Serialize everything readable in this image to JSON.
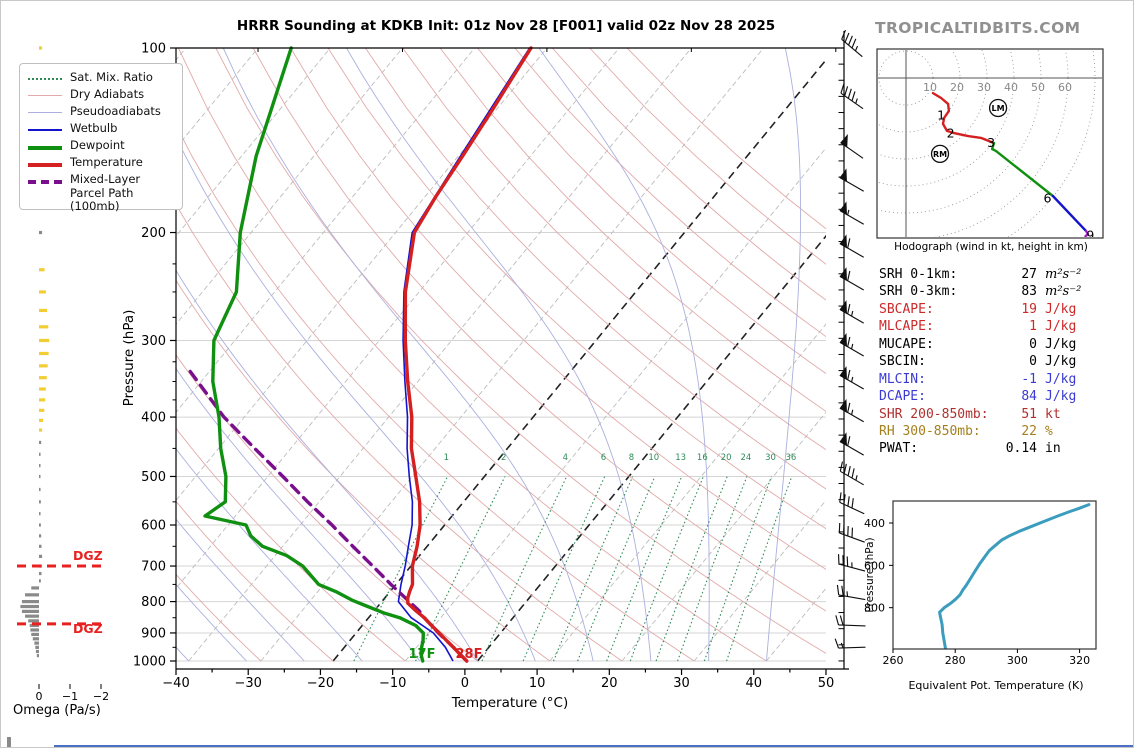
{
  "header": {
    "title": "HRRR Sounding at KDKB Init: 01z Nov 28 [F001] valid 02z Nov 28 2025",
    "watermark": "TROPICALTIDBITS.COM"
  },
  "legend": {
    "items": [
      {
        "key": "sat_mix_ratio",
        "label": "Sat. Mix. Ratio"
      },
      {
        "key": "dry_adiabats",
        "label": "Dry Adiabats"
      },
      {
        "key": "pseudoadiabats",
        "label": "Pseudoadiabats"
      },
      {
        "key": "wetbulb",
        "label": "Wetbulb"
      },
      {
        "key": "dewpoint",
        "label": "Dewpoint"
      },
      {
        "key": "temperature",
        "label": "Temperature"
      },
      {
        "key": "parcel",
        "label": "Mixed-Layer",
        "label2": "Parcel Path (100mb)"
      }
    ]
  },
  "axes": {
    "pressure_label": "Pressure (hPa)",
    "temp_label": "Temperature (°C)",
    "omega_label": "Omega (Pa/s)",
    "hodo_caption": "Hodograph (wind in kt, height in km)",
    "thetae_xlabel": "Equivalent Pot. Temperature (K)",
    "thetae_ylabel": "Pressure (hPa)"
  },
  "stats": {
    "rows": [
      {
        "label": "SRH 0-1km:",
        "value": "27",
        "unit": "m²s⁻²",
        "color": "#000000",
        "unit_italic": true
      },
      {
        "label": "SRH 0-3km:",
        "value": "83",
        "unit": "m²s⁻²",
        "color": "#000000",
        "unit_italic": true
      },
      {
        "label": "SBCAPE:",
        "value": "19",
        "unit": "J/kg",
        "color": "#cc2929",
        "unit_italic": false
      },
      {
        "label": "MLCAPE:",
        "value": "1",
        "unit": "J/kg",
        "color": "#cc2929",
        "unit_italic": false
      },
      {
        "label": "MUCAPE:",
        "value": "0",
        "unit": "J/kg",
        "color": "#000000",
        "unit_italic": false
      },
      {
        "label": "SBCIN:",
        "value": "0",
        "unit": "J/kg",
        "color": "#000000",
        "unit_italic": false
      },
      {
        "label": "MLCIN:",
        "value": "-1",
        "unit": "J/kg",
        "color": "#3b3bd1",
        "unit_italic": false
      },
      {
        "label": "DCAPE:",
        "value": "84",
        "unit": "J/kg",
        "color": "#3b3bd1",
        "unit_italic": false
      },
      {
        "label": "SHR 200-850mb:",
        "value": "51",
        "unit": "kt",
        "color": "#b03030",
        "unit_italic": false
      },
      {
        "label": "RH 300-850mb:",
        "value": "22",
        "unit": "%",
        "color": "#a5801f",
        "unit_italic": false
      },
      {
        "label": "PWAT:",
        "value": "0.14",
        "unit": "in",
        "color": "#000000",
        "unit_italic": false
      }
    ]
  },
  "chart_data": [
    {
      "type": "line",
      "name": "skewt",
      "title": "HRRR Sounding at KDKB Init: 01z Nov 28 [F001] valid 02z Nov 28 2025",
      "xlabel": "Temperature (°C)",
      "ylabel": "Pressure (hPa)",
      "xlim": [
        -40,
        50
      ],
      "ylim": [
        1000,
        100
      ],
      "x_ticks": [
        -40,
        -30,
        -20,
        -10,
        0,
        10,
        20,
        30,
        40,
        50
      ],
      "pressure_ticks": [
        100,
        200,
        300,
        400,
        500,
        600,
        700,
        800,
        900,
        1000
      ],
      "mixing_ratio_values": [
        1,
        2,
        4,
        6,
        8,
        10,
        13,
        16,
        20,
        24,
        30,
        36
      ],
      "surface_labels": [
        {
          "text": "17F",
          "x": 421,
          "y": 648,
          "color": "#109010"
        },
        {
          "text": "28F",
          "x": 468,
          "y": 648,
          "color": "#d42020"
        }
      ],
      "colors": {
        "temperature": "#d42020",
        "dewpoint": "#109010",
        "wetbulb": "#1414cc",
        "parcel": "#7a0f8e",
        "dry_adiabat": "#e2aaaa",
        "pseudoadiabat": "#abb0de",
        "mixing_ratio": "#2e8b57",
        "isotherm": "#bcbcbc",
        "isotherm_bold": "#222222"
      },
      "series": [
        {
          "name": "Temperature",
          "points": [
            [
              1000,
              -1.5
            ],
            [
              975,
              -3.2
            ],
            [
              950,
              -4.9
            ],
            [
              925,
              -6.7
            ],
            [
              900,
              -8.5
            ],
            [
              875,
              -10.4
            ],
            [
              850,
              -12.3
            ],
            [
              825,
              -14.5
            ],
            [
              805,
              -16.2
            ],
            [
              790,
              -16.8
            ],
            [
              770,
              -17.3
            ],
            [
              750,
              -17.7
            ],
            [
              700,
              -19.8
            ],
            [
              650,
              -21.4
            ],
            [
              600,
              -23.4
            ],
            [
              550,
              -26.1
            ],
            [
              500,
              -29.5
            ],
            [
              450,
              -33.3
            ],
            [
              400,
              -36.8
            ],
            [
              350,
              -41.4
            ],
            [
              300,
              -46.4
            ],
            [
              250,
              -51.9
            ],
            [
              200,
              -57.4
            ],
            [
              175,
              -58.5
            ],
            [
              150,
              -59.4
            ],
            [
              125,
              -60.6
            ],
            [
              100,
              -62.2
            ]
          ]
        },
        {
          "name": "Dewpoint",
          "points": [
            [
              1000,
              -7.6
            ],
            [
              975,
              -8.6
            ],
            [
              950,
              -9.3
            ],
            [
              925,
              -9.9
            ],
            [
              900,
              -10.7
            ],
            [
              875,
              -12.6
            ],
            [
              850,
              -15.7
            ],
            [
              835,
              -18.4
            ],
            [
              815,
              -21.4
            ],
            [
              797,
              -24.1
            ],
            [
              772,
              -27.3
            ],
            [
              750,
              -30.7
            ],
            [
              700,
              -35.0
            ],
            [
              673,
              -38.4
            ],
            [
              650,
              -42.8
            ],
            [
              625,
              -45.6
            ],
            [
              600,
              -47.5
            ],
            [
              580,
              -54.2
            ],
            [
              550,
              -53.0
            ],
            [
              500,
              -55.8
            ],
            [
              450,
              -59.7
            ],
            [
              400,
              -63.5
            ],
            [
              350,
              -68.4
            ],
            [
              300,
              -72.9
            ],
            [
              250,
              -75.3
            ],
            [
              200,
              -81.5
            ],
            [
              150,
              -88.0
            ],
            [
              100,
              -95.4
            ]
          ]
        },
        {
          "name": "Wetbulb",
          "points": [
            [
              1000,
              -3.4
            ],
            [
              950,
              -6.0
            ],
            [
              900,
              -9.3
            ],
            [
              850,
              -14.1
            ],
            [
              800,
              -17.7
            ],
            [
              750,
              -19.3
            ],
            [
              700,
              -20.8
            ],
            [
              650,
              -22.6
            ],
            [
              600,
              -24.5
            ],
            [
              550,
              -27.1
            ],
            [
              500,
              -30.4
            ],
            [
              450,
              -33.9
            ],
            [
              400,
              -37.4
            ],
            [
              350,
              -41.8
            ],
            [
              300,
              -46.7
            ],
            [
              250,
              -52.1
            ],
            [
              200,
              -57.7
            ],
            [
              150,
              -59.7
            ],
            [
              100,
              -62.4
            ]
          ]
        },
        {
          "name": "Mixed-Layer Parcel Path (100mb)",
          "points": [
            [
              1000,
              -1.5
            ],
            [
              950,
              -4.9
            ],
            [
              900,
              -8.6
            ],
            [
              850,
              -12.3
            ],
            [
              828,
              -13.8
            ],
            [
              750,
              -20.7
            ],
            [
              700,
              -25.3
            ],
            [
              650,
              -30.3
            ],
            [
              600,
              -35.6
            ],
            [
              550,
              -41.6
            ],
            [
              500,
              -47.9
            ],
            [
              450,
              -55.0
            ],
            [
              400,
              -62.8
            ],
            [
              335,
              -73.0
            ]
          ]
        }
      ],
      "wind_barbs": [
        [
          100,
          45,
          310
        ],
        [
          122,
          45,
          305
        ],
        [
          147,
          50,
          305
        ],
        [
          167,
          50,
          300
        ],
        [
          189,
          55,
          300
        ],
        [
          214,
          60,
          300
        ],
        [
          242,
          60,
          300
        ],
        [
          274,
          65,
          300
        ],
        [
          310,
          65,
          300
        ],
        [
          351,
          65,
          300
        ],
        [
          397,
          65,
          300
        ],
        [
          450,
          60,
          300
        ],
        [
          503,
          45,
          300
        ],
        [
          563,
          40,
          295
        ],
        [
          629,
          40,
          290
        ],
        [
          704,
          35,
          285
        ],
        [
          787,
          25,
          280
        ],
        [
          875,
          20,
          272
        ],
        [
          951,
          15,
          268
        ]
      ]
    },
    {
      "type": "line",
      "name": "hodograph",
      "caption": "Hodograph (wind in kt, height in km)",
      "ring_labels": [
        10,
        20,
        30,
        40,
        50,
        60
      ],
      "segments": [
        {
          "color": "#d42020",
          "points": [
            [
              10,
              -5.6
            ],
            [
              13,
              -7.4
            ],
            [
              15.6,
              -9.6
            ],
            [
              15.9,
              -12.2
            ],
            [
              14.1,
              -14.8
            ],
            [
              13.7,
              -17.0
            ],
            [
              15.2,
              -19.6
            ],
            [
              17.8,
              -20.4
            ],
            [
              23,
              -21.5
            ],
            [
              27.8,
              -22.2
            ],
            [
              32.6,
              -24.1
            ]
          ]
        },
        {
          "color": "#109010",
          "points": [
            [
              32.6,
              -24.1
            ],
            [
              31.9,
              -26.3
            ],
            [
              33.3,
              -27.0
            ],
            [
              54.4,
              -43.7
            ]
          ]
        },
        {
          "color": "#1414cc",
          "points": [
            [
              54.4,
              -43.7
            ],
            [
              66.7,
              -56.7
            ]
          ]
        },
        {
          "color": "#a020c0",
          "points": [
            [
              66.7,
              -56.7
            ],
            [
              67.4,
              -57.8
            ],
            [
              66.5,
              -58.6
            ]
          ]
        }
      ],
      "height_labels": [
        {
          "t": "1",
          "u": 13.0,
          "v": -13.9
        },
        {
          "t": "2",
          "u": 16.5,
          "v": -20.6
        },
        {
          "t": "3",
          "u": 31.5,
          "v": -24.0
        },
        {
          "t": "6",
          "u": 52.4,
          "v": -44.6
        },
        {
          "t": "9",
          "u": 68.3,
          "v": -58.3
        }
      ],
      "storm_motion_markers": [
        {
          "label": "RM",
          "u": 12.6,
          "v": -28.1
        },
        {
          "label": "LM",
          "u": 34.1,
          "v": -11.1
        }
      ]
    },
    {
      "type": "bar",
      "name": "omega",
      "xlabel": "Omega (Pa/s)",
      "x_ticks": [
        0,
        -1,
        -2
      ],
      "dgz_label": "DGZ",
      "dgz_pressures": [
        700,
        870
      ],
      "bar_colors": {
        "gray": "#8a8a8a",
        "yellow": "#f2ce33"
      },
      "dgz_color": "#e82020",
      "bars": [
        [
          100,
          -0.1,
          "yellow"
        ],
        [
          145,
          -0.05,
          "gray"
        ],
        [
          168,
          -0.07,
          "gray"
        ],
        [
          200,
          -0.1,
          "gray"
        ],
        [
          230,
          -0.18,
          "yellow"
        ],
        [
          250,
          -0.22,
          "yellow"
        ],
        [
          268,
          -0.26,
          "yellow"
        ],
        [
          285,
          -0.3,
          "yellow"
        ],
        [
          300,
          -0.33,
          "yellow"
        ],
        [
          315,
          -0.31,
          "yellow"
        ],
        [
          330,
          -0.28,
          "yellow"
        ],
        [
          345,
          -0.25,
          "yellow"
        ],
        [
          360,
          -0.22,
          "yellow"
        ],
        [
          375,
          -0.2,
          "yellow"
        ],
        [
          390,
          -0.17,
          "yellow"
        ],
        [
          405,
          -0.13,
          "yellow"
        ],
        [
          420,
          -0.1,
          "yellow"
        ],
        [
          440,
          -0.07,
          "gray"
        ],
        [
          460,
          -0.05,
          "gray"
        ],
        [
          480,
          -0.04,
          "gray"
        ],
        [
          500,
          -0.04,
          "gray"
        ],
        [
          525,
          -0.05,
          "gray"
        ],
        [
          550,
          -0.06,
          "gray"
        ],
        [
          575,
          -0.05,
          "gray"
        ],
        [
          600,
          -0.06,
          "gray"
        ],
        [
          625,
          -0.07,
          "gray"
        ],
        [
          650,
          -0.08,
          "gray"
        ],
        [
          675,
          -0.1,
          "gray"
        ],
        [
          700,
          -0.1,
          "gray"
        ],
        [
          720,
          -0.08,
          "gray"
        ],
        [
          740,
          -0.06,
          "gray"
        ],
        [
          760,
          0.25,
          "gray"
        ],
        [
          780,
          0.45,
          "gray"
        ],
        [
          800,
          0.55,
          "gray"
        ],
        [
          815,
          0.6,
          "gray"
        ],
        [
          830,
          0.55,
          "gray"
        ],
        [
          845,
          0.45,
          "gray"
        ],
        [
          860,
          0.35,
          "gray"
        ],
        [
          875,
          0.3,
          "gray"
        ],
        [
          890,
          0.28,
          "gray"
        ],
        [
          905,
          0.25,
          "gray"
        ],
        [
          920,
          0.2,
          "gray"
        ],
        [
          935,
          0.15,
          "gray"
        ],
        [
          950,
          0.12,
          "gray"
        ],
        [
          965,
          0.1,
          "gray"
        ],
        [
          980,
          0.07,
          "gray"
        ]
      ]
    },
    {
      "type": "line",
      "name": "theta_e",
      "xlabel": "Equivalent Pot. Temperature (K)",
      "ylabel": "Pressure (hPa)",
      "x_ticks": [
        260,
        280,
        300,
        320
      ],
      "y_ticks": [
        400,
        600,
        800
      ],
      "color": "#3b9dbd",
      "points": [
        [
          277,
          1005
        ],
        [
          276.5,
          960
        ],
        [
          276,
          920
        ],
        [
          275.8,
          880
        ],
        [
          275.2,
          840
        ],
        [
          275,
          822
        ],
        [
          276.5,
          800
        ],
        [
          278.5,
          780
        ],
        [
          280,
          762
        ],
        [
          281.5,
          740
        ],
        [
          282.5,
          715
        ],
        [
          283.5,
          695
        ],
        [
          285,
          660
        ],
        [
          286.5,
          625
        ],
        [
          288,
          590
        ],
        [
          289.5,
          560
        ],
        [
          291,
          530
        ],
        [
          293,
          505
        ],
        [
          295,
          480
        ],
        [
          297.5,
          460
        ],
        [
          301,
          437
        ],
        [
          305,
          413
        ],
        [
          309,
          390
        ],
        [
          313,
          367
        ],
        [
          317,
          345
        ],
        [
          320,
          330
        ],
        [
          323,
          313
        ]
      ]
    }
  ]
}
